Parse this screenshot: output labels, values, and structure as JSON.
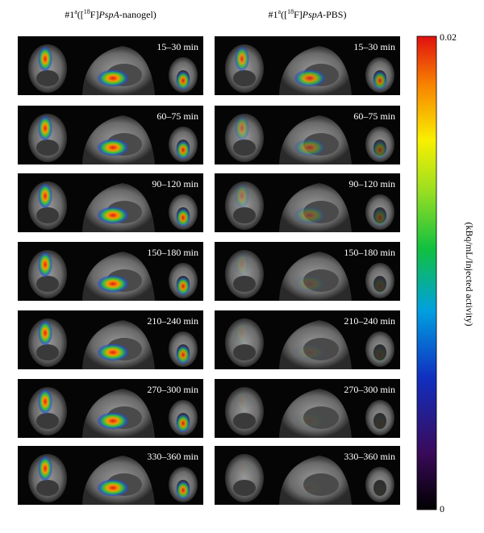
{
  "columns": [
    {
      "prefix": "#1",
      "sup": "a",
      "open": "([",
      "isotope": "18",
      "element": "F]",
      "agent": "PspA",
      "suffix": "-nanogel)"
    },
    {
      "prefix": "#1",
      "sup": "a",
      "open": "([",
      "isotope": "18",
      "element": "F]",
      "agent": "PspA",
      "suffix": "-PBS)"
    }
  ],
  "time_labels": [
    "15–30 min",
    "60–75 min",
    "90–120 min",
    "150–180 min",
    "210–240 min",
    "270–300 min",
    "330–360 min"
  ],
  "colorbar": {
    "max_label": "0.02",
    "min_label": "0",
    "label": "(kBq/mL/Injected activity)"
  }
}
